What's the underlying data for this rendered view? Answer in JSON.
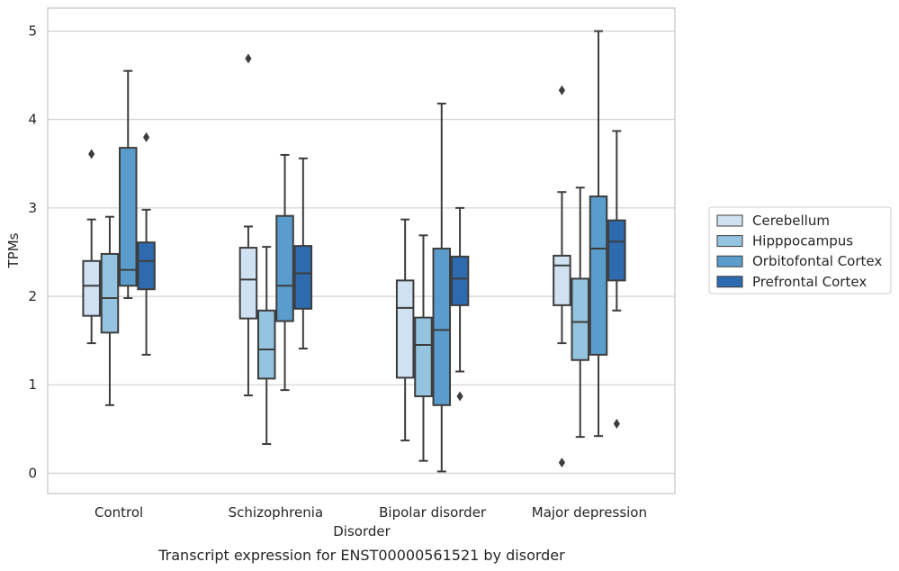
{
  "chart_data": {
    "type": "boxplot",
    "title": "Transcript expression for ENST00000561521 by disorder",
    "xlabel": "Disorder",
    "ylabel": "TPMs",
    "ylim": [
      -0.23,
      5.26
    ],
    "yticks": [
      0,
      1,
      2,
      3,
      4,
      5
    ],
    "grid": true,
    "legend_position": "right",
    "categories": [
      "Control",
      "Schizophrenia",
      "Bipolar disorder",
      "Major depression"
    ],
    "series": [
      {
        "name": "Cerebellum",
        "color": "#d0e1f2",
        "boxes": [
          {
            "whislo": 1.47,
            "q1": 1.78,
            "med": 2.12,
            "q3": 2.4,
            "whishi": 2.87,
            "fliers": [
              3.61
            ]
          },
          {
            "whislo": 0.88,
            "q1": 1.75,
            "med": 2.19,
            "q3": 2.55,
            "whishi": 2.79,
            "fliers": [
              4.69
            ]
          },
          {
            "whislo": 0.37,
            "q1": 1.08,
            "med": 1.87,
            "q3": 2.18,
            "whishi": 2.87,
            "fliers": []
          },
          {
            "whislo": 1.47,
            "q1": 1.9,
            "med": 2.35,
            "q3": 2.46,
            "whishi": 3.18,
            "fliers": [
              4.33,
              0.12
            ]
          }
        ]
      },
      {
        "name": "Hipppocampus",
        "color": "#94c4df",
        "boxes": [
          {
            "whislo": 0.77,
            "q1": 1.59,
            "med": 1.98,
            "q3": 2.48,
            "whishi": 2.9,
            "fliers": []
          },
          {
            "whislo": 0.33,
            "q1": 1.07,
            "med": 1.4,
            "q3": 1.84,
            "whishi": 2.56,
            "fliers": []
          },
          {
            "whislo": 0.14,
            "q1": 0.87,
            "med": 1.45,
            "q3": 1.76,
            "whishi": 2.69,
            "fliers": []
          },
          {
            "whislo": 0.41,
            "q1": 1.28,
            "med": 1.71,
            "q3": 2.2,
            "whishi": 3.23,
            "fliers": []
          }
        ]
      },
      {
        "name": "Orbitofontal Cortex",
        "color": "#5a9ccc",
        "boxes": [
          {
            "whislo": 1.98,
            "q1": 2.12,
            "med": 2.3,
            "q3": 3.68,
            "whishi": 4.55,
            "fliers": []
          },
          {
            "whislo": 0.94,
            "q1": 1.72,
            "med": 2.12,
            "q3": 2.91,
            "whishi": 3.6,
            "fliers": []
          },
          {
            "whislo": 0.02,
            "q1": 0.77,
            "med": 1.62,
            "q3": 2.54,
            "whishi": 4.18,
            "fliers": []
          },
          {
            "whislo": 0.42,
            "q1": 1.34,
            "med": 2.54,
            "q3": 3.13,
            "whishi": 5.0,
            "fliers": []
          }
        ]
      },
      {
        "name": "Prefrontal Cortex",
        "color": "#2d6aae",
        "boxes": [
          {
            "whislo": 1.34,
            "q1": 2.08,
            "med": 2.4,
            "q3": 2.61,
            "whishi": 2.98,
            "fliers": [
              3.8
            ]
          },
          {
            "whislo": 1.41,
            "q1": 1.86,
            "med": 2.26,
            "q3": 2.57,
            "whishi": 3.56,
            "fliers": []
          },
          {
            "whislo": 1.15,
            "q1": 1.9,
            "med": 2.2,
            "q3": 2.45,
            "whishi": 3.0,
            "fliers": [
              0.87
            ]
          },
          {
            "whislo": 1.84,
            "q1": 2.18,
            "med": 2.62,
            "q3": 2.86,
            "whishi": 3.87,
            "fliers": [
              0.56
            ]
          }
        ]
      }
    ]
  }
}
